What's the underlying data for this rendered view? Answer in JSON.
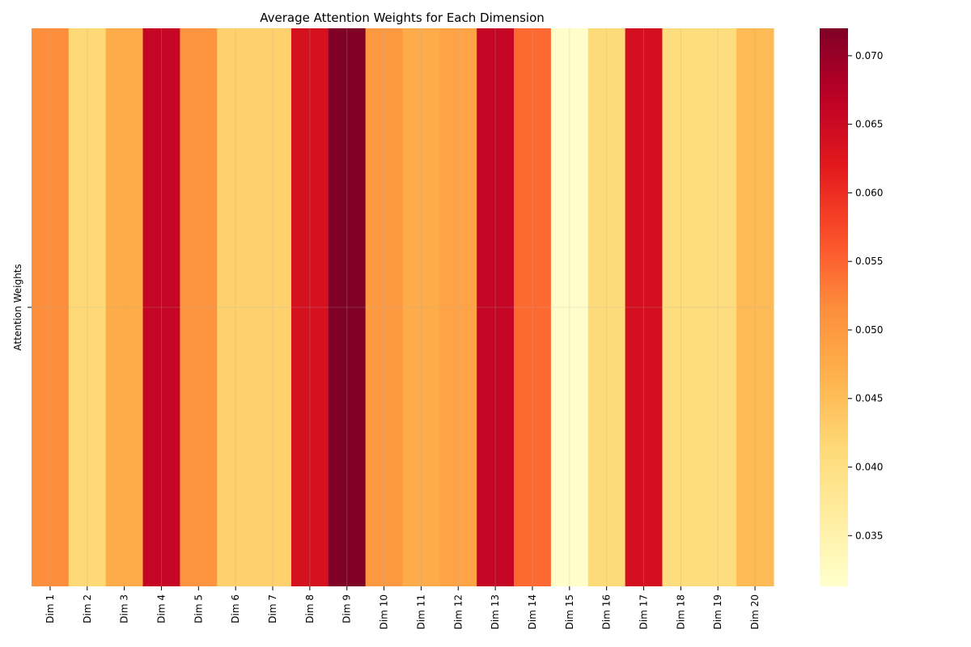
{
  "chart_data": {
    "type": "heatmap",
    "title": "Average Attention Weights for Each Dimension",
    "xlabel": "",
    "ylabel": "Attention Weights",
    "categories": [
      "Dim 1",
      "Dim 2",
      "Dim 3",
      "Dim 4",
      "Dim 5",
      "Dim 6",
      "Dim 7",
      "Dim 8",
      "Dim 9",
      "Dim 10",
      "Dim 11",
      "Dim 12",
      "Dim 13",
      "Dim 14",
      "Dim 15",
      "Dim 16",
      "Dim 17",
      "Dim 18",
      "Dim 19",
      "Dim 20"
    ],
    "values": [
      0.0515,
      0.0415,
      0.0475,
      0.066,
      0.0505,
      0.0425,
      0.0425,
      0.0635,
      0.072,
      0.05,
      0.0475,
      0.0485,
      0.066,
      0.0545,
      0.0315,
      0.041,
      0.064,
      0.0405,
      0.0405,
      0.0455
    ],
    "colorbar": {
      "min": 0.0313,
      "max": 0.072,
      "ticks": [
        "0.035",
        "0.040",
        "0.045",
        "0.050",
        "0.055",
        "0.060",
        "0.065",
        "0.070"
      ],
      "colormap": "YlOrRd"
    },
    "grid": true
  }
}
